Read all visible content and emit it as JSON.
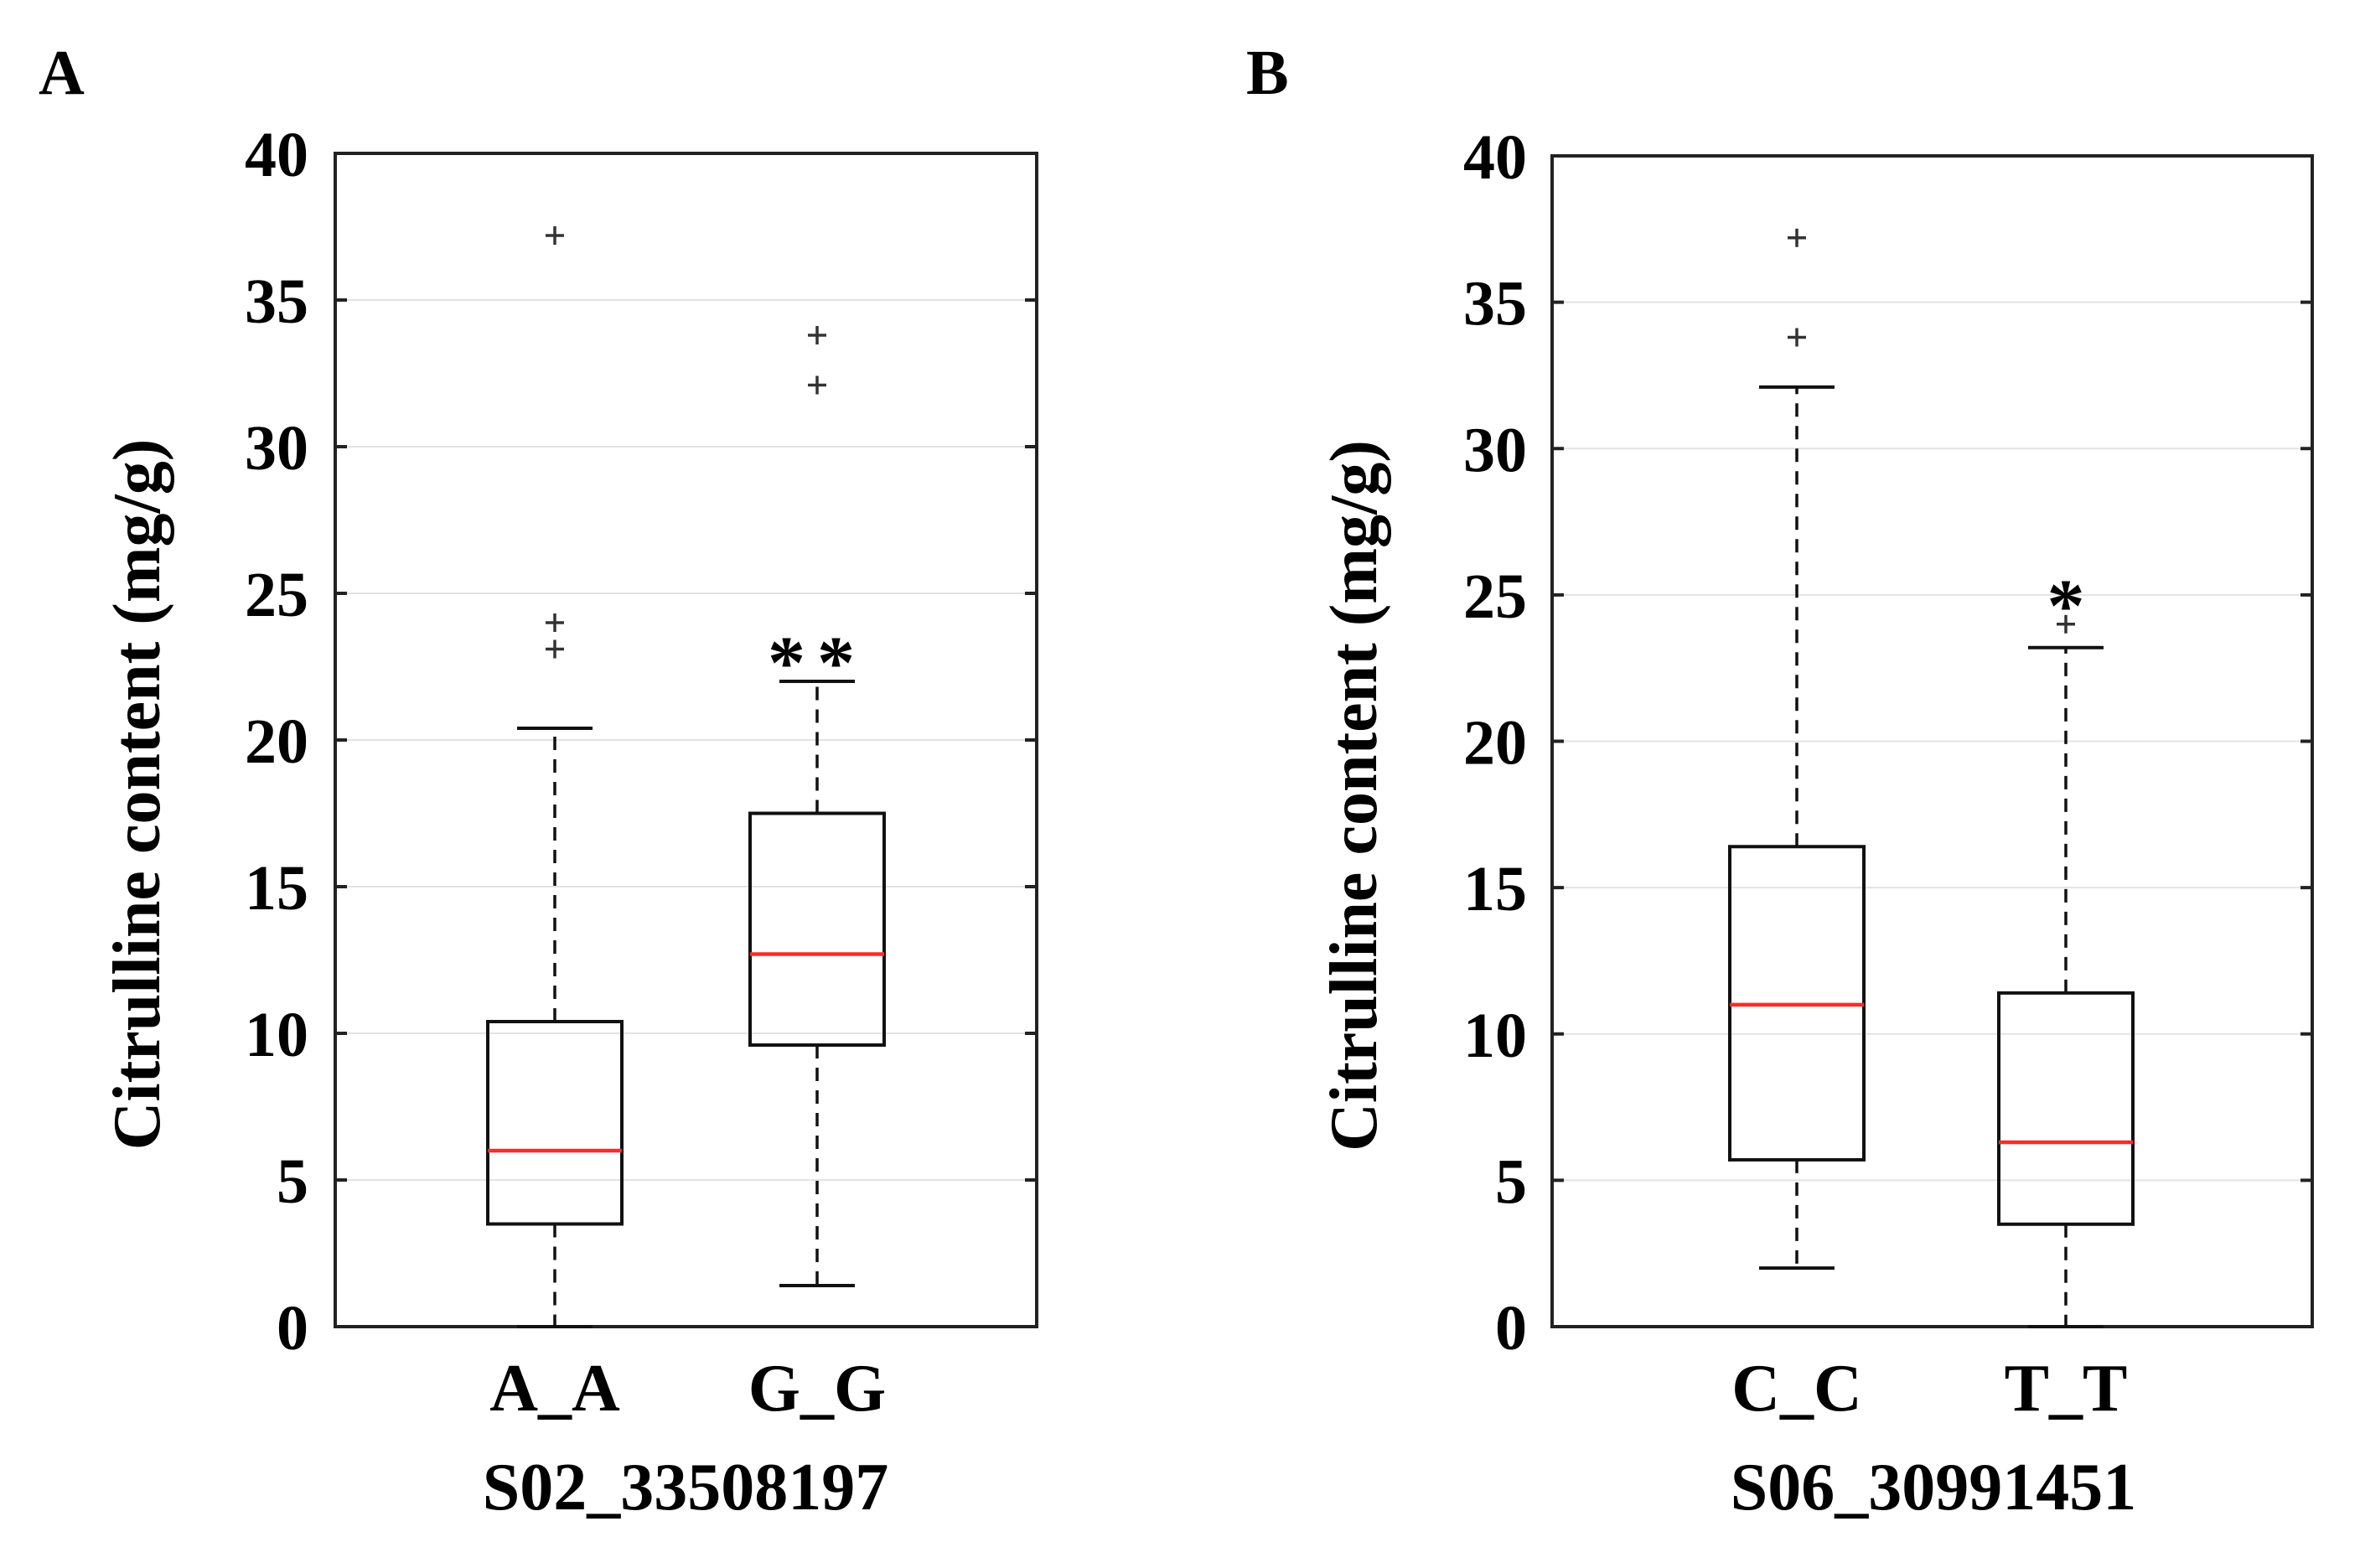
{
  "figure": {
    "panels": [
      "A",
      "B"
    ]
  },
  "chart_data": [
    {
      "type": "box",
      "panel": "A",
      "ylabel": "Citrulline content (mg/g)",
      "xlabel": "S02_33508197",
      "ylim": [
        0,
        40
      ],
      "yticks": [
        0,
        5,
        10,
        15,
        20,
        25,
        30,
        35,
        40
      ],
      "grid": true,
      "groups": [
        {
          "name": "A_A",
          "whisker_low": 0,
          "q1": 3.5,
          "median": 6.0,
          "q3": 10.4,
          "whisker_high": 20.4,
          "outliers": [
            23.1,
            24.0,
            37.2
          ],
          "annotation": ""
        },
        {
          "name": "G_G",
          "whisker_low": 1.4,
          "q1": 9.6,
          "median": 12.7,
          "q3": 17.5,
          "whisker_high": 22.0,
          "outliers": [
            32.1,
            33.8
          ],
          "annotation": "**"
        }
      ]
    },
    {
      "type": "box",
      "panel": "B",
      "ylabel": "Citrulline content (mg/g)",
      "xlabel": "S06_30991451",
      "ylim": [
        0,
        40
      ],
      "yticks": [
        0,
        5,
        10,
        15,
        20,
        25,
        30,
        35,
        40
      ],
      "grid": true,
      "groups": [
        {
          "name": "C_C",
          "whisker_low": 2.0,
          "q1": 5.7,
          "median": 11.0,
          "q3": 16.4,
          "whisker_high": 32.1,
          "outliers": [
            33.8,
            37.2
          ],
          "annotation": ""
        },
        {
          "name": "T_T",
          "whisker_low": 0,
          "q1": 3.5,
          "median": 6.3,
          "q3": 11.4,
          "whisker_high": 23.2,
          "outliers": [
            24.0
          ],
          "annotation": "*"
        }
      ]
    }
  ]
}
